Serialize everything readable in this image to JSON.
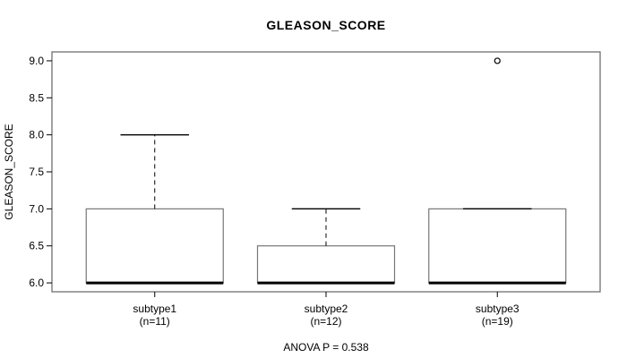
{
  "chart_data": {
    "type": "boxplot",
    "title": "GLEASON_SCORE",
    "ylabel": "GLEASON_SCORE",
    "annotation": "ANOVA P = 0.538",
    "ylim": [
      5.88,
      9.12
    ],
    "xlim": [
      0.4,
      3.6
    ],
    "yticks": [
      6.0,
      6.5,
      7.0,
      7.5,
      8.0,
      8.5,
      9.0
    ],
    "ytick_labels": [
      "6.0",
      "6.5",
      "7.0",
      "7.5",
      "8.0",
      "8.5",
      "9.0"
    ],
    "box_width": 0.8,
    "staple_width": 0.4,
    "grid": false,
    "legend": false,
    "groups": [
      {
        "label": "subtype1",
        "n_label": "(n=11)",
        "n": 11,
        "position": 1,
        "stats": {
          "whisker_low": 6.0,
          "q1": 6.0,
          "median": 6.0,
          "q3": 7.0,
          "whisker_high": 8.0
        },
        "outliers": []
      },
      {
        "label": "subtype2",
        "n_label": "(n=12)",
        "n": 12,
        "position": 2,
        "stats": {
          "whisker_low": 6.0,
          "q1": 6.0,
          "median": 6.0,
          "q3": 6.5,
          "whisker_high": 7.0
        },
        "outliers": []
      },
      {
        "label": "subtype3",
        "n_label": "(n=19)",
        "n": 19,
        "position": 3,
        "stats": {
          "whisker_low": 6.0,
          "q1": 6.0,
          "median": 6.0,
          "q3": 7.0,
          "whisker_high": 7.0
        },
        "outliers": [
          9.0
        ]
      }
    ],
    "colors": {
      "frame": "#6f6f6f",
      "box_stroke": "#777777",
      "box_fill": "#ffffff",
      "line": "#000000",
      "text": "#000000",
      "background": "#ffffff"
    }
  }
}
